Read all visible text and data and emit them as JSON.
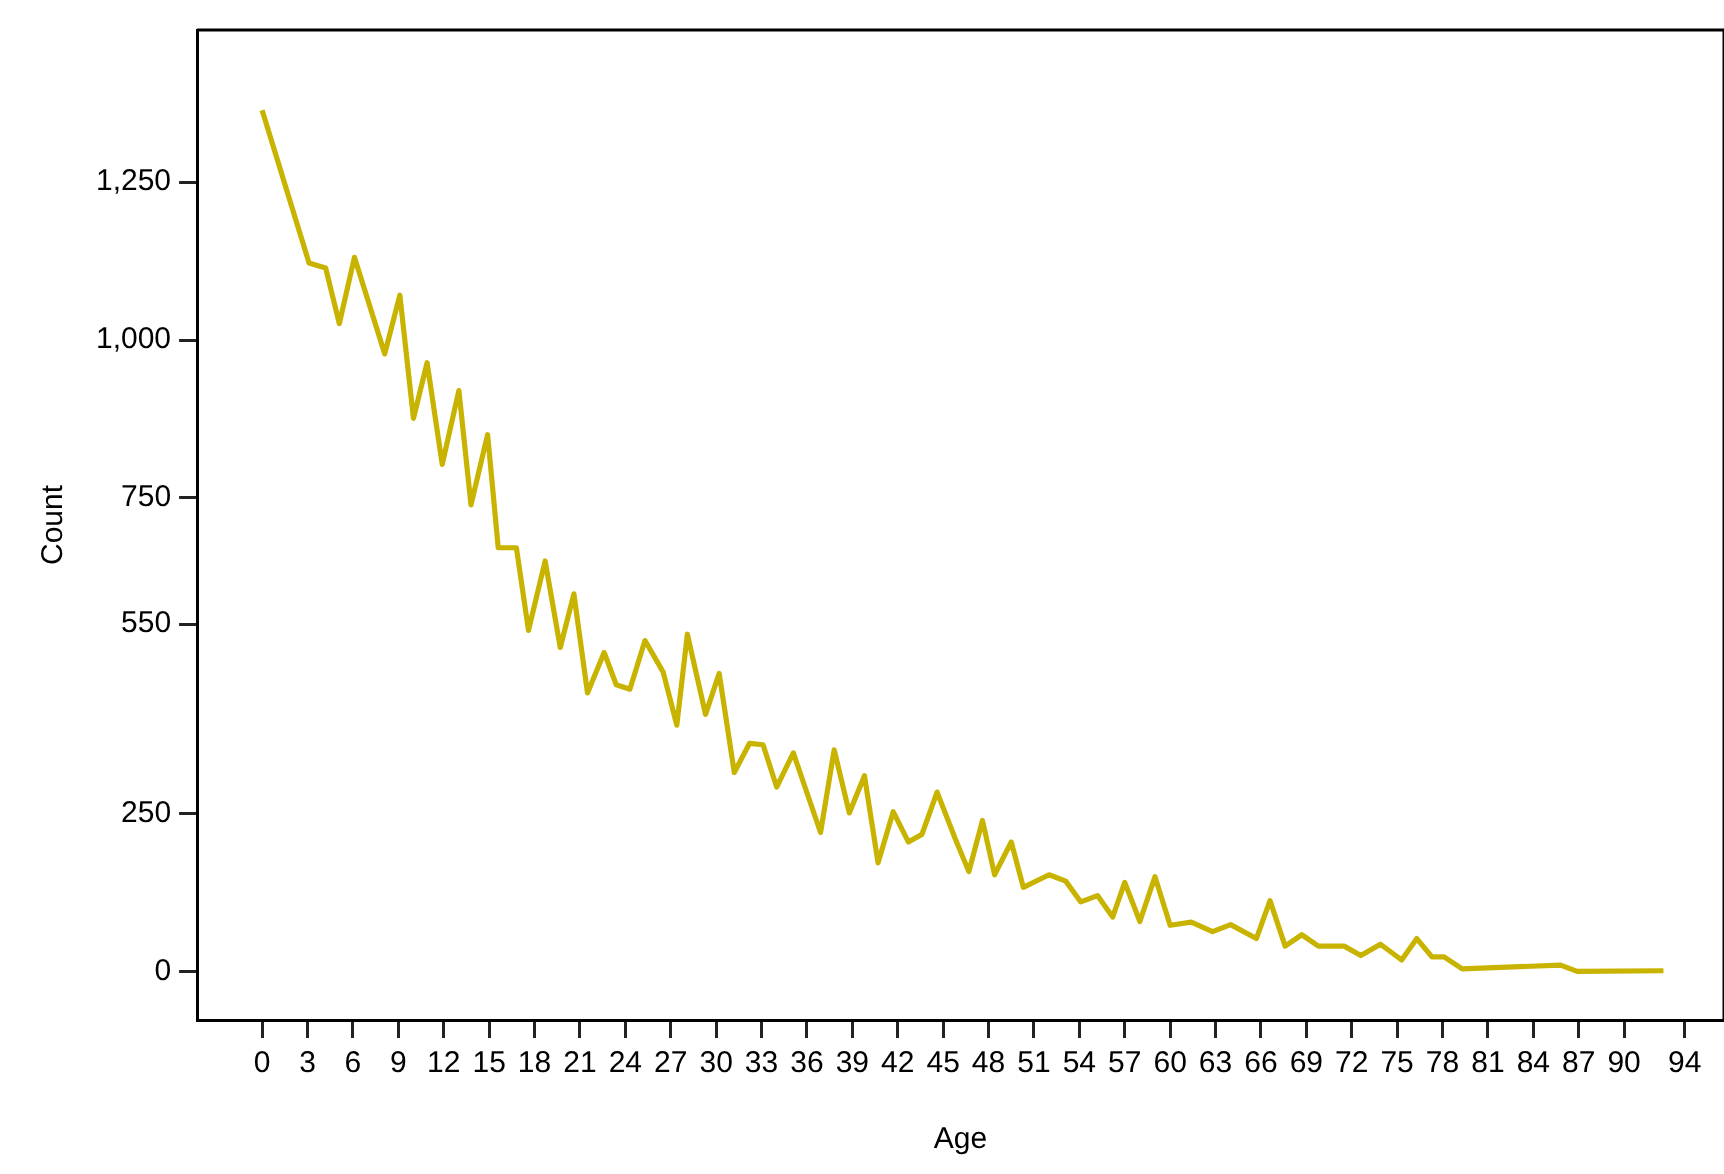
{
  "chart_data": {
    "type": "line",
    "xlabel": "Age",
    "ylabel": "Count",
    "xlim": [
      -4.3,
      96.6
    ],
    "ylim": [
      -77,
      1491
    ],
    "xticks": [
      0,
      3,
      6,
      9,
      12,
      15,
      18,
      21,
      24,
      27,
      30,
      33,
      36,
      39,
      42,
      45,
      48,
      51,
      54,
      57,
      60,
      63,
      66,
      69,
      72,
      75,
      78,
      81,
      84,
      87,
      90,
      94
    ],
    "yticks": [
      0,
      250,
      550,
      750,
      {
        "value": 1000,
        "label": "1,000"
      },
      {
        "value": 1250,
        "label": "1,250"
      }
    ],
    "grid": false,
    "legend": false,
    "marker": "none",
    "line_style": "solid",
    "series": [
      {
        "color": "#c8b400",
        "x": [
          0,
          3.1,
          4.2,
          5.1,
          6.1,
          8.1,
          9.1,
          10,
          10.9,
          11.9,
          13,
          13.8,
          14.9,
          15.6,
          16.8,
          17.6,
          18.7,
          19.7,
          20.6,
          21.5,
          22.6,
          23.4,
          24.3,
          25.3,
          26.5,
          27.4,
          28.1,
          29.3,
          30.2,
          31.2,
          32.2,
          33.1,
          34,
          35.1,
          36.9,
          37.8,
          38.8,
          39.8,
          40.7,
          41.7,
          42.7,
          43.6,
          44.6,
          45.8,
          46.7,
          47.6,
          48.4,
          49.5,
          50.3,
          52,
          53.1,
          54.1,
          55.2,
          56.2,
          57,
          58,
          59,
          60,
          61.4,
          62.8,
          64,
          65.7,
          66.6,
          67.6,
          68.7,
          69.8,
          71.5,
          72.6,
          73.9,
          75.3,
          76.3,
          77.3,
          78.1,
          79.3,
          85.8,
          86.9,
          92.6
        ],
        "values": [
          1364,
          1122,
          1114,
          1026,
          1131,
          978,
          1071,
          876,
          964,
          803,
          920,
          739,
          850,
          671,
          671,
          540,
          650,
          513,
          598,
          441,
          505,
          454,
          447,
          524,
          474,
          390,
          534,
          407,
          472,
          315,
          361,
          359,
          292,
          346,
          220,
          351,
          251,
          310,
          172,
          253,
          205,
          217,
          284,
          210,
          158,
          239,
          153,
          205,
          133,
          153,
          143,
          110,
          120,
          86,
          141,
          79,
          150,
          73,
          78,
          63,
          74,
          52,
          112,
          40,
          58,
          40,
          40,
          25,
          43,
          18,
          52,
          23,
          23,
          4,
          10,
          0,
          1
        ]
      }
    ]
  }
}
